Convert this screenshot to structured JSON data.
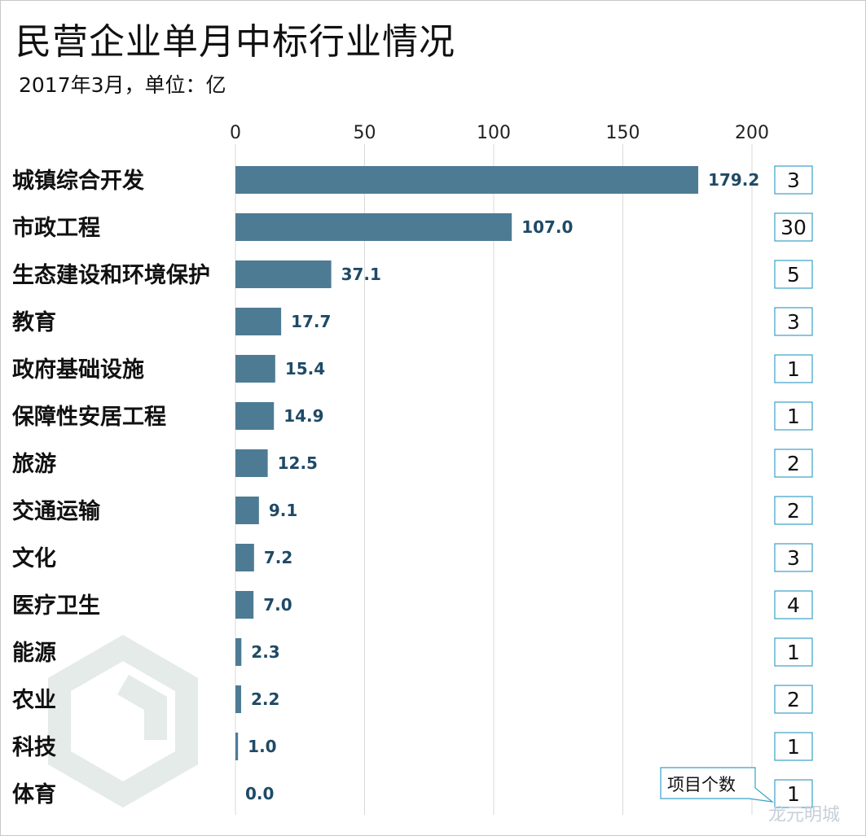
{
  "title": "民营企业单月中标行业情况",
  "subtitle": "2017年3月，单位：亿",
  "chart_data": {
    "type": "bar",
    "orientation": "horizontal",
    "title": "民营企业单月中标行业情况",
    "subtitle": "2017年3月，单位：亿",
    "xlim": [
      0,
      200
    ],
    "x_ticks": [
      0,
      50,
      100,
      150,
      200
    ],
    "grid": true,
    "categories": [
      "城镇综合开发",
      "市政工程",
      "生态建设和环境保护",
      "教育",
      "政府基础设施",
      "保障性安居工程",
      "旅游",
      "交通运输",
      "文化",
      "医疗卫生",
      "能源",
      "农业",
      "科技",
      "体育"
    ],
    "values": [
      179.2,
      107.0,
      37.1,
      17.7,
      15.4,
      14.9,
      12.5,
      9.1,
      7.2,
      7.0,
      2.3,
      2.2,
      1.0,
      0.0
    ],
    "value_labels": [
      "179.2",
      "107.0",
      "37.1",
      "17.7",
      "15.4",
      "14.9",
      "12.5",
      "9.1",
      "7.2",
      "7.0",
      "2.3",
      "2.2",
      "1.0",
      "0.0"
    ],
    "project_counts": [
      3,
      30,
      5,
      3,
      1,
      1,
      2,
      2,
      3,
      4,
      1,
      2,
      1,
      1
    ],
    "count_callout": "项目个数",
    "colors": {
      "bar": "#4e7b94",
      "data_label": "#1f4a66",
      "grid": "#d9d9d9",
      "count_border": "#3aa0c8"
    }
  },
  "watermark": "龙元明城"
}
